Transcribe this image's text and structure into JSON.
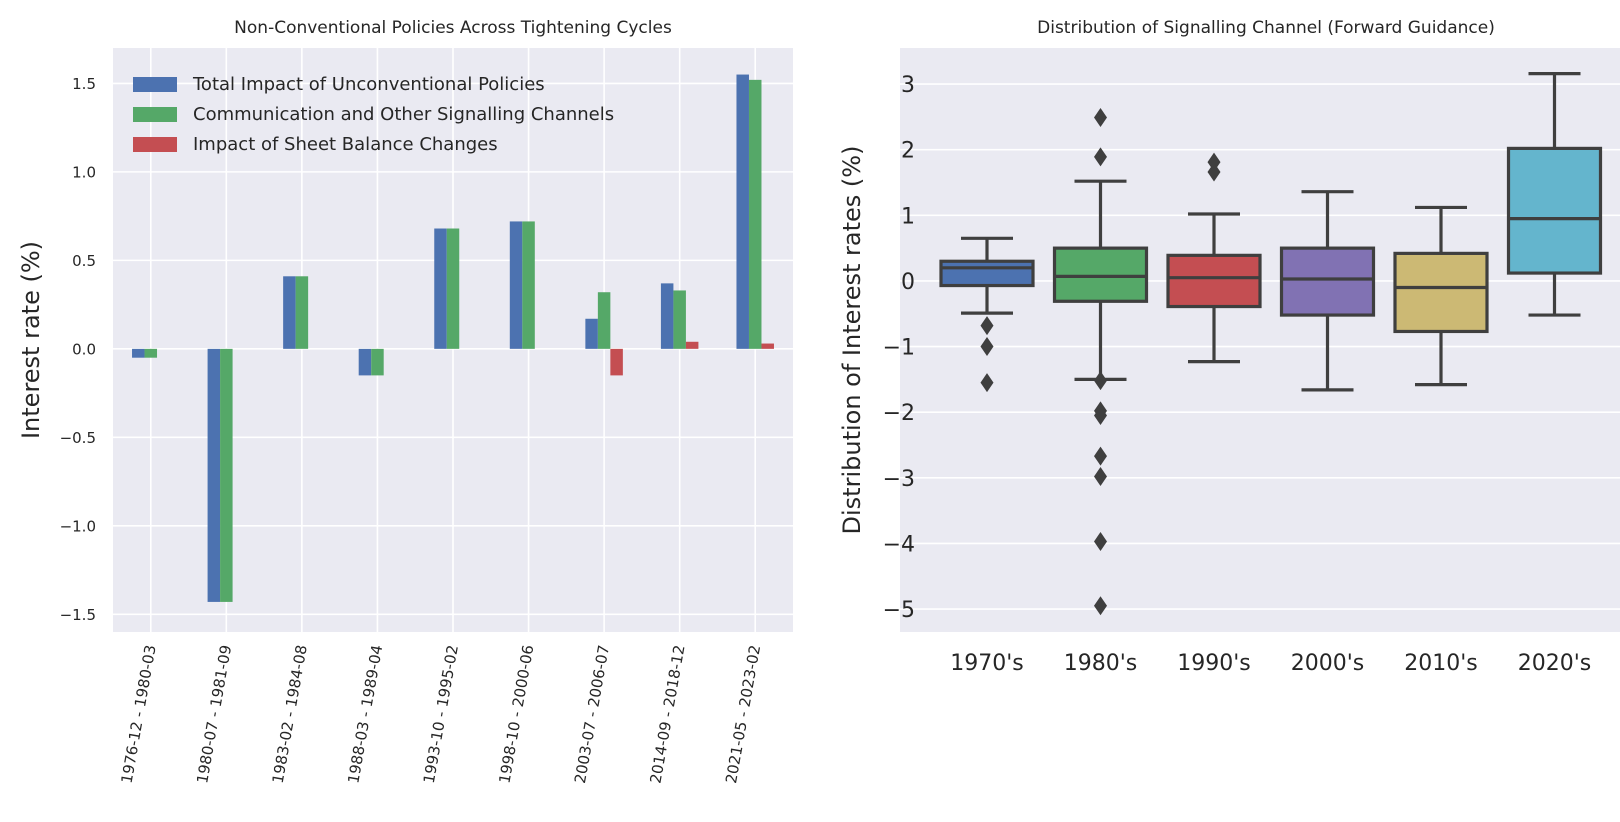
{
  "chart_data": [
    {
      "type": "bar",
      "title": "Non-Conventional Policies Across Tightening Cycles",
      "xlabel": "",
      "ylabel": "Interest rate (%)",
      "ylim": [
        -1.6,
        1.7
      ],
      "yticks": [
        -1.5,
        -1.0,
        -0.5,
        0.0,
        0.5,
        1.0,
        1.5
      ],
      "ytick_labels": [
        "−1.5",
        "−1.0",
        "−0.5",
        "0.0",
        "0.5",
        "1.0",
        "1.5"
      ],
      "grid": true,
      "legend": "top-left",
      "categories": [
        "1976-12 - 1980-03",
        "1980-07 - 1981-09",
        "1983-02 - 1984-08",
        "1988-03 - 1989-04",
        "1993-10 - 1995-02",
        "1998-10 - 2000-06",
        "2003-07 - 2006-07",
        "2014-09 - 2018-12",
        "2021-05 - 2023-02"
      ],
      "series": [
        {
          "name": "Total Impact of Unconventional Policies",
          "color": "#4c72b0",
          "values": [
            -0.05,
            -1.43,
            0.41,
            -0.15,
            0.68,
            0.72,
            0.17,
            0.37,
            1.55
          ]
        },
        {
          "name": "Communication and Other Signalling Channels",
          "color": "#55a868",
          "values": [
            -0.05,
            -1.43,
            0.41,
            -0.15,
            0.68,
            0.72,
            0.32,
            0.33,
            1.52
          ]
        },
        {
          "name": "Impact of Sheet Balance Changes",
          "color": "#c44e52",
          "values": [
            0.0,
            0.0,
            0.0,
            0.0,
            0.0,
            0.0,
            -0.15,
            0.04,
            0.03
          ]
        }
      ]
    },
    {
      "type": "box",
      "title": "Distribution of Signalling Channel (Forward Guidance)",
      "xlabel": "",
      "ylabel": "Distribution of Interest rates (%)",
      "ylim": [
        -5.35,
        3.55
      ],
      "yticks": [
        -5,
        -4,
        -3,
        -2,
        -1,
        0,
        1,
        2,
        3
      ],
      "ytick_labels": [
        "−5",
        "−4",
        "−3",
        "−2",
        "−1",
        "0",
        "1",
        "2",
        "3"
      ],
      "grid": true,
      "categories": [
        "1970's",
        "1980's",
        "1990's",
        "2000's",
        "2010's",
        "2020's"
      ],
      "boxes": [
        {
          "category": "1970's",
          "color": "#4c72b0",
          "whisker_low": -0.49,
          "q1": -0.07,
          "median": 0.2,
          "q3": 0.3,
          "whisker_high": 0.65,
          "outliers": [
            -0.68,
            -1.0,
            -1.55
          ]
        },
        {
          "category": "1980's",
          "color": "#55a868",
          "whisker_low": -1.5,
          "q1": -0.31,
          "median": 0.07,
          "q3": 0.5,
          "whisker_high": 1.52,
          "outliers": [
            2.49,
            1.89,
            -1.52,
            -1.98,
            -2.05,
            -2.67,
            -2.98,
            -3.97,
            -4.95
          ]
        },
        {
          "category": "1990's",
          "color": "#c44e52",
          "whisker_low": -1.23,
          "q1": -0.39,
          "median": 0.05,
          "q3": 0.39,
          "whisker_high": 1.02,
          "outliers": [
            1.81,
            1.66
          ]
        },
        {
          "category": "2000's",
          "color": "#8172b3",
          "whisker_low": -1.66,
          "q1": -0.52,
          "median": 0.03,
          "q3": 0.5,
          "whisker_high": 1.36,
          "outliers": []
        },
        {
          "category": "2010's",
          "color": "#ccb974",
          "whisker_low": -1.58,
          "q1": -0.77,
          "median": -0.1,
          "q3": 0.42,
          "whisker_high": 1.12,
          "outliers": []
        },
        {
          "category": "2020's",
          "color": "#64b5cd",
          "whisker_low": -0.52,
          "q1": 0.12,
          "median": 0.95,
          "q3": 2.02,
          "whisker_high": 3.16,
          "outliers": []
        }
      ]
    }
  ]
}
